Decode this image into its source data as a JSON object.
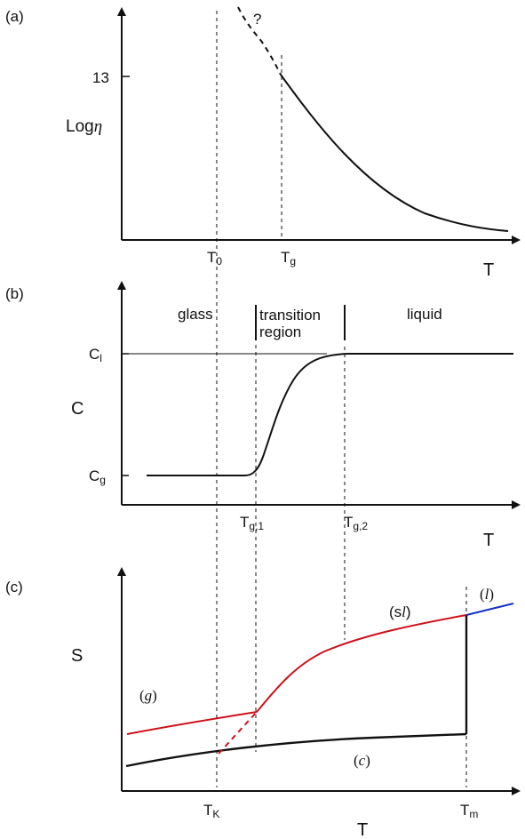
{
  "panel_a": {
    "label": "(a)",
    "y_tick": "13",
    "y_label": "Log",
    "y_label_symbol": "η",
    "question": "?",
    "x_label": "T",
    "t0_main": "T",
    "t0_sub": "0",
    "tg_main": "T",
    "tg_sub": "g"
  },
  "panel_b": {
    "label": "(b)",
    "y_label": "C",
    "cl_main": "C",
    "cl_sub": "l",
    "cg_main": "C",
    "cg_sub": "g",
    "region_glass": "glass",
    "region_transition_1": "transition",
    "region_transition_2": "region",
    "region_liquid": "liquid",
    "x_label": "T",
    "tg1_main": "T",
    "tg1_sub": "g,1",
    "tg2_main": "T",
    "tg2_sub": "g,2"
  },
  "panel_c": {
    "label": "(c)",
    "y_label": "S",
    "x_label": "T",
    "tk_main": "T",
    "tk_sub": "K",
    "tm_main": "T",
    "tm_sub": "m",
    "label_g": "g",
    "label_c": "c",
    "label_sl": "s",
    "label_sl_italic": "l",
    "label_l": "l"
  },
  "colors": {
    "axes": "#111111",
    "supercooled_liquid": "#d0101a",
    "liquid": "#1530c8",
    "crystal": "#111111"
  }
}
